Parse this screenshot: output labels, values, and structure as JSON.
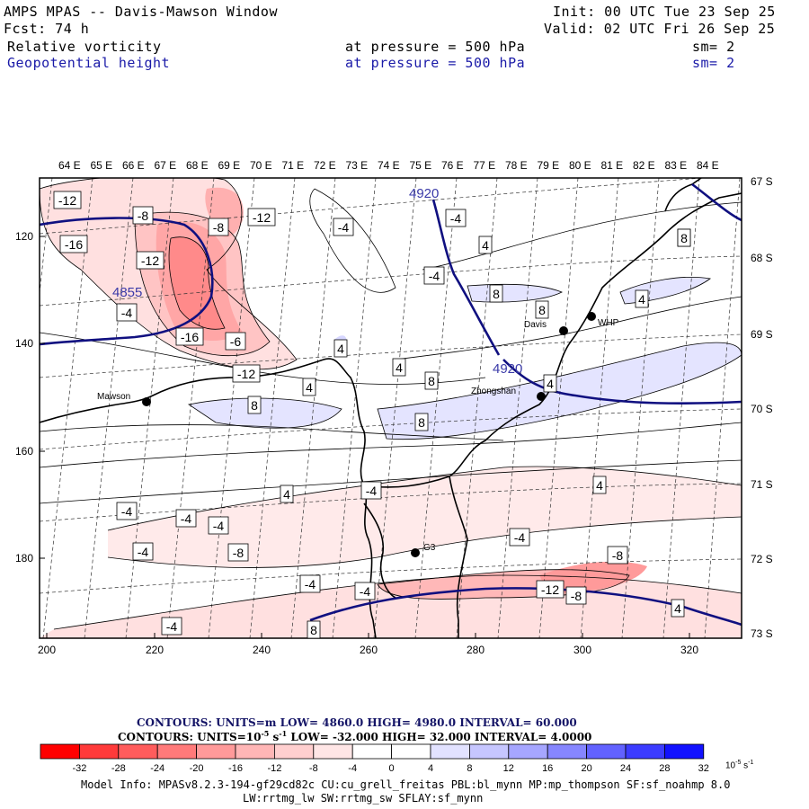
{
  "header": {
    "title": "AMPS MPAS -- Davis-Mawson Window",
    "forecast": "Fcst:    74 h",
    "init": "Init: 00 UTC Tue 23 Sep 25",
    "valid": "Valid: 02 UTC Fri 26 Sep 25",
    "field1": "Relative vorticity",
    "field1_level": "at pressure =  500 hPa",
    "field1_smooth": "sm= 2",
    "field2": "Geopotential height",
    "field2_level": "at pressure =  500 hPa",
    "field2_smooth": "sm= 2"
  },
  "map": {
    "top_lon_labels": [
      "64 E",
      "65 E",
      "66 E",
      "67 E",
      "68 E",
      "69 E",
      "70 E",
      "71 E",
      "72 E",
      "73 E",
      "74 E",
      "75 E",
      "76 E",
      "77 E",
      "78 E",
      "79 E",
      "80 E",
      "81 E",
      "82 E",
      "83 E",
      "84 E"
    ],
    "right_lat_labels": [
      "67 S",
      "68 S",
      "69 S",
      "70 S",
      "71 S",
      "72 S",
      "73 S"
    ],
    "x_ticks": [
      "200",
      "220",
      "240",
      "260",
      "280",
      "300",
      "320"
    ],
    "y_ticks": [
      "120",
      "140",
      "160",
      "180"
    ],
    "stations": [
      {
        "name": "Mawson"
      },
      {
        "name": "Davis"
      },
      {
        "name": "WHP"
      },
      {
        "name": "Zhongshan"
      },
      {
        "name": "G3"
      }
    ],
    "height_labels": [
      "4920",
      "4855",
      "4920"
    ],
    "vorticity_labels": [
      "-12",
      "-8",
      "-16",
      "-8",
      "-12",
      "-12",
      "-4",
      "-16",
      "-6",
      "-12",
      "4",
      "-4",
      "4",
      "-4",
      "8",
      "8",
      "4",
      "4",
      "8",
      "8",
      "4",
      "8",
      "4",
      "4",
      "-4",
      "-4",
      "-4",
      "4",
      "-4",
      "-8",
      "-4",
      "-4",
      "4",
      "-4",
      "-8",
      "-4",
      "-4",
      "-12",
      "-8",
      "4",
      "-4",
      "8",
      "8"
    ]
  },
  "footer": {
    "contours1": "CONTOURS:  UNITS=m  LOW=  4860.0          HIGH=  4980.0          INTERVAL=     60.000",
    "contours2": "CONTOURS:  UNITS=10",
    "contours2_exp": "-5",
    "contours2_unit": " s",
    "contours2_unit_exp": "-1",
    "contours2_rest": "   LOW=  -32.000          HIGH=  32.000          INTERVAL=      4.0000",
    "colorbar_labels": [
      "-32",
      "-28",
      "-24",
      "-20",
      "-16",
      "-12",
      "-8",
      "-4",
      "0",
      "4",
      "8",
      "12",
      "16",
      "20",
      "24",
      "28",
      "32"
    ],
    "colorbar_colors": [
      "#ff0000",
      "#ff3a3a",
      "#ff5c5c",
      "#ff7a7a",
      "#ff9a9a",
      "#ffb6b6",
      "#ffcfcf",
      "#ffe6e6",
      "#ffffff",
      "#ffffff",
      "#e2e2ff",
      "#c6c6ff",
      "#a6a6ff",
      "#8686ff",
      "#6262ff",
      "#3c3cff",
      "#1212ff"
    ],
    "colorbar_unit": "10",
    "colorbar_unit_exp": "-5",
    "colorbar_unit_s": " s",
    "colorbar_unit_s_exp": "-1",
    "model_info1": "Model Info: MPASv8.2.3-194-gf29cd82c CU:cu_grell_freitas PBL:bl_mynn MP:mp_thompson SF:sf_noahmp 8.0",
    "model_info2": "LW:rrtmg_lw SW:rrtmg_sw SFLAY:sf_mynn"
  }
}
